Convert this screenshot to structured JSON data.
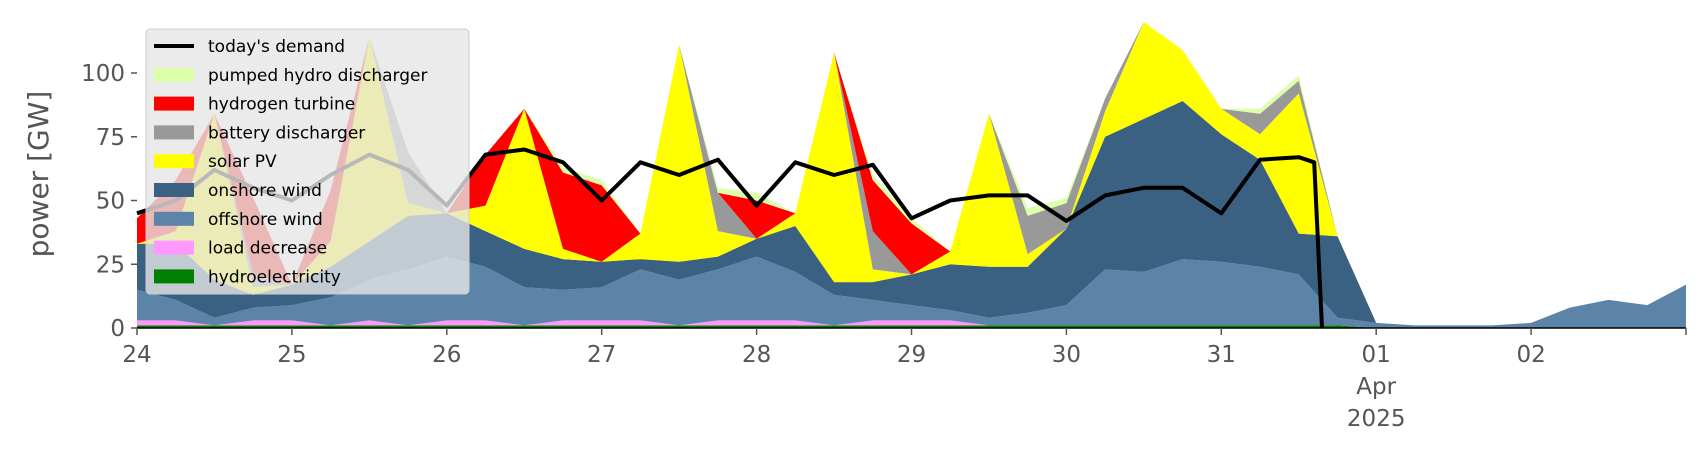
{
  "chart_data": {
    "type": "area",
    "ylabel": "power [GW]",
    "xlabel": "",
    "ylim": [
      0,
      120
    ],
    "yticks": [
      0,
      25,
      50,
      75,
      100
    ],
    "xlim": [
      0,
      10
    ],
    "xticks": [
      {
        "x": 0,
        "lines": [
          "24"
        ]
      },
      {
        "x": 1,
        "lines": [
          "25"
        ]
      },
      {
        "x": 2,
        "lines": [
          "26"
        ]
      },
      {
        "x": 3,
        "lines": [
          "27"
        ]
      },
      {
        "x": 4,
        "lines": [
          "28"
        ]
      },
      {
        "x": 5,
        "lines": [
          "29"
        ]
      },
      {
        "x": 6,
        "lines": [
          "30"
        ]
      },
      {
        "x": 7,
        "lines": [
          "31"
        ]
      },
      {
        "x": 8,
        "lines": [
          "01",
          "Apr",
          "2025"
        ]
      },
      {
        "x": 9,
        "lines": [
          "02"
        ]
      }
    ],
    "grid": false,
    "legend_position": "top-left",
    "x": [
      0,
      0.25,
      0.5,
      0.75,
      1,
      1.25,
      1.5,
      1.75,
      2,
      2.25,
      2.5,
      2.75,
      3,
      3.25,
      3.5,
      3.75,
      4,
      4.25,
      4.5,
      4.75,
      5,
      5.25,
      5.5,
      5.75,
      6,
      6.25,
      6.5,
      6.75,
      7,
      7.25,
      7.5,
      7.75,
      8,
      8.25,
      8.5,
      8.75,
      9,
      9.25,
      9.5,
      9.75,
      10
    ],
    "series": [
      {
        "name": "hydroelectricity",
        "color": "#008000",
        "values": [
          1,
          1,
          1,
          1,
          1,
          1,
          1,
          1,
          1,
          1,
          1,
          1,
          1,
          1,
          1,
          1,
          1,
          1,
          1,
          1,
          1,
          1,
          1,
          1,
          1,
          1,
          1,
          1,
          1,
          1,
          1,
          1,
          0,
          0,
          0,
          0,
          0,
          0,
          0,
          0,
          0
        ]
      },
      {
        "name": "load decrease",
        "color": "#ff99ff",
        "values": [
          2,
          2,
          0,
          2,
          2,
          0,
          2,
          0,
          2,
          2,
          0,
          2,
          2,
          2,
          0,
          2,
          2,
          2,
          0,
          2,
          2,
          2,
          0,
          0,
          0,
          0,
          0,
          0,
          0,
          0,
          0,
          0,
          0,
          0,
          0,
          0,
          0,
          0,
          0,
          0,
          0
        ]
      },
      {
        "name": "offshore wind",
        "color": "#5b84a8",
        "values": [
          12,
          8,
          3,
          5,
          6,
          11,
          16,
          22,
          25,
          21,
          15,
          12,
          13,
          20,
          18,
          20,
          25,
          19,
          12,
          8,
          6,
          4,
          3,
          5,
          8,
          22,
          21,
          26,
          25,
          23,
          20,
          3,
          2,
          1,
          1,
          1,
          2,
          8,
          11,
          9,
          17
        ]
      },
      {
        "name": "onshore wind",
        "color": "#3b6182",
        "values": [
          18,
          22,
          15,
          5,
          8,
          12,
          15,
          21,
          17,
          14,
          15,
          12,
          10,
          4,
          7,
          5,
          7,
          18,
          5,
          7,
          12,
          18,
          20,
          18,
          30,
          52,
          60,
          62,
          50,
          42,
          16,
          32,
          0,
          0,
          0,
          0,
          0,
          0,
          0,
          0,
          0
        ]
      },
      {
        "name": "solar PV",
        "color": "#ffff00",
        "values": [
          0,
          5,
          65,
          3,
          0,
          10,
          80,
          5,
          0,
          10,
          55,
          4,
          0,
          10,
          85,
          10,
          0,
          5,
          90,
          5,
          0,
          5,
          60,
          5,
          0,
          10,
          50,
          20,
          10,
          10,
          55,
          0,
          0,
          0,
          0,
          0,
          0,
          0,
          0,
          0,
          0
        ]
      },
      {
        "name": "battery discharger",
        "color": "#999999",
        "values": [
          0,
          0,
          0,
          5,
          0,
          0,
          0,
          20,
          0,
          0,
          0,
          0,
          0,
          0,
          0,
          15,
          0,
          0,
          0,
          15,
          0,
          0,
          0,
          15,
          10,
          5,
          0,
          0,
          0,
          8,
          5,
          0,
          0,
          0,
          0,
          0,
          0,
          0,
          0,
          0,
          0
        ]
      },
      {
        "name": "hydrogen turbine",
        "color": "#ff0000",
        "values": [
          10,
          20,
          0,
          30,
          0,
          20,
          0,
          0,
          0,
          20,
          0,
          30,
          30,
          0,
          0,
          0,
          15,
          0,
          0,
          20,
          20,
          0,
          0,
          0,
          0,
          0,
          0,
          0,
          0,
          0,
          0,
          0,
          0,
          0,
          0,
          0,
          0,
          0,
          0,
          0,
          0
        ]
      },
      {
        "name": "pumped hydro discharger",
        "color": "#ddffaa",
        "values": [
          0,
          0,
          0,
          0,
          0,
          0,
          0,
          0,
          0,
          0,
          0,
          2,
          2,
          0,
          0,
          2,
          3,
          0,
          0,
          2,
          2,
          0,
          0,
          3,
          2,
          0,
          0,
          0,
          0,
          2,
          2,
          0,
          0,
          0,
          0,
          0,
          0,
          0,
          0,
          0,
          0
        ]
      }
    ],
    "demand": {
      "name": "today's demand",
      "color": "#000000",
      "x": [
        0,
        0.25,
        0.5,
        0.75,
        1,
        1.25,
        1.5,
        1.75,
        2,
        2.25,
        2.5,
        2.75,
        3,
        3.25,
        3.5,
        3.75,
        4,
        4.25,
        4.5,
        4.75,
        5,
        5.25,
        5.5,
        5.75,
        6,
        6.25,
        6.5,
        6.75,
        7,
        7.25,
        7.5,
        7.6,
        7.65
      ],
      "values": [
        45,
        50,
        62,
        55,
        50,
        60,
        68,
        62,
        48,
        68,
        70,
        65,
        50,
        65,
        60,
        66,
        48,
        65,
        60,
        64,
        43,
        50,
        52,
        52,
        42,
        52,
        55,
        55,
        45,
        66,
        67,
        65,
        0
      ]
    },
    "legend": [
      "today's demand",
      "pumped hydro discharger",
      "hydrogen turbine",
      "battery discharger",
      "solar PV",
      "onshore wind",
      "offshore wind",
      "load decrease",
      "hydroelectricity"
    ]
  }
}
